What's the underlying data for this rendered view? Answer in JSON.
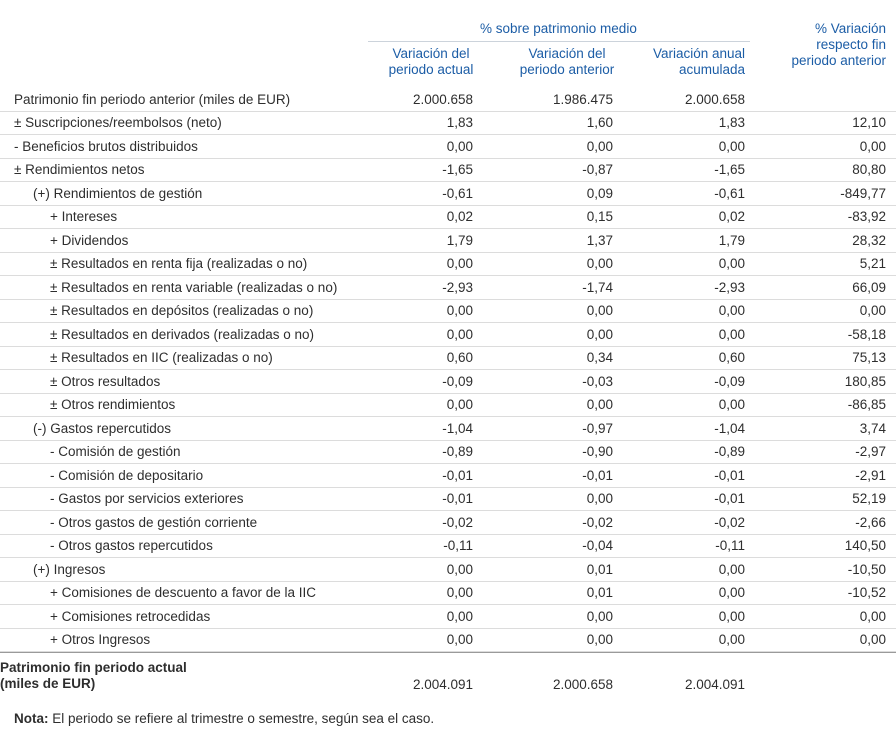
{
  "header": {
    "group_title": "% sobre patrimonio medio",
    "columns": [
      "Variación del periodo actual",
      "Variación del periodo anterior",
      "Variación anual acumulada",
      "% Variación respecto fin periodo anterior"
    ]
  },
  "table": {
    "rows": [
      {
        "label": "Patrimonio fin periodo anterior (miles de EUR)",
        "indent": 0,
        "values": [
          "2.000.658",
          "1.986.475",
          "2.000.658",
          ""
        ]
      },
      {
        "label": "± Suscripciones/reembolsos (neto)",
        "indent": 0,
        "values": [
          "1,83",
          "1,60",
          "1,83",
          "12,10"
        ]
      },
      {
        "label": "- Beneficios brutos distribuidos",
        "indent": 0,
        "values": [
          "0,00",
          "0,00",
          "0,00",
          "0,00"
        ]
      },
      {
        "label": "± Rendimientos netos",
        "indent": 0,
        "values": [
          "-1,65",
          "-0,87",
          "-1,65",
          "80,80"
        ]
      },
      {
        "label": "(+) Rendimientos de gestión",
        "indent": 1,
        "values": [
          "-0,61",
          "0,09",
          "-0,61",
          "-849,77"
        ]
      },
      {
        "label": "+ Intereses",
        "indent": 2,
        "values": [
          "0,02",
          "0,15",
          "0,02",
          "-83,92"
        ]
      },
      {
        "label": "+ Dividendos",
        "indent": 2,
        "values": [
          "1,79",
          "1,37",
          "1,79",
          "28,32"
        ]
      },
      {
        "label": "± Resultados en renta fija (realizadas o no)",
        "indent": 2,
        "values": [
          "0,00",
          "0,00",
          "0,00",
          "5,21"
        ]
      },
      {
        "label": "± Resultados en renta variable (realizadas o no)",
        "indent": 2,
        "values": [
          "-2,93",
          "-1,74",
          "-2,93",
          "66,09"
        ]
      },
      {
        "label": "± Resultados en depósitos (realizadas o no)",
        "indent": 2,
        "values": [
          "0,00",
          "0,00",
          "0,00",
          "0,00"
        ]
      },
      {
        "label": "± Resultados en derivados (realizadas o no)",
        "indent": 2,
        "values": [
          "0,00",
          "0,00",
          "0,00",
          "-58,18"
        ]
      },
      {
        "label": "± Resultados en IIC (realizadas o no)",
        "indent": 2,
        "values": [
          "0,60",
          "0,34",
          "0,60",
          "75,13"
        ]
      },
      {
        "label": "± Otros resultados",
        "indent": 2,
        "values": [
          "-0,09",
          "-0,03",
          "-0,09",
          "180,85"
        ]
      },
      {
        "label": "± Otros rendimientos",
        "indent": 2,
        "values": [
          "0,00",
          "0,00",
          "0,00",
          "-86,85"
        ]
      },
      {
        "label": "(-) Gastos repercutidos",
        "indent": 1,
        "values": [
          "-1,04",
          "-0,97",
          "-1,04",
          "3,74"
        ]
      },
      {
        "label": "- Comisión de gestión",
        "indent": 2,
        "values": [
          "-0,89",
          "-0,90",
          "-0,89",
          "-2,97"
        ]
      },
      {
        "label": "- Comisión de depositario",
        "indent": 2,
        "values": [
          "-0,01",
          "-0,01",
          "-0,01",
          "-2,91"
        ]
      },
      {
        "label": "- Gastos por servicios exteriores",
        "indent": 2,
        "values": [
          "-0,01",
          "0,00",
          "-0,01",
          "52,19"
        ]
      },
      {
        "label": "- Otros gastos de gestión corriente",
        "indent": 2,
        "values": [
          "-0,02",
          "-0,02",
          "-0,02",
          "-2,66"
        ]
      },
      {
        "label": "- Otros gastos repercutidos",
        "indent": 2,
        "values": [
          "-0,11",
          "-0,04",
          "-0,11",
          "140,50"
        ]
      },
      {
        "label": "(+) Ingresos",
        "indent": 1,
        "values": [
          "0,00",
          "0,01",
          "0,00",
          "-10,50"
        ]
      },
      {
        "label": "+ Comisiones de descuento a favor de la IIC",
        "indent": 2,
        "values": [
          "0,00",
          "0,01",
          "0,00",
          "-10,52"
        ]
      },
      {
        "label": "+ Comisiones retrocedidas",
        "indent": 2,
        "values": [
          "0,00",
          "0,00",
          "0,00",
          "0,00"
        ]
      },
      {
        "label": "+ Otros Ingresos",
        "indent": 2,
        "values": [
          "0,00",
          "0,00",
          "0,00",
          "0,00"
        ]
      }
    ],
    "total_row": {
      "label_line1": "Patrimonio fin periodo actual",
      "label_line2": "(miles de EUR)",
      "values": [
        "2.004.091",
        "2.000.658",
        "2.004.091",
        ""
      ]
    }
  },
  "note": {
    "prefix": "Nota:",
    "text": " El periodo se refiere al trimestre o semestre, según sea el caso."
  },
  "colors": {
    "header_blue": "#1c5da6",
    "row_separator": "#dcdcdc",
    "total_separator": "#9a9a9a",
    "text": "#2e2e2e"
  }
}
